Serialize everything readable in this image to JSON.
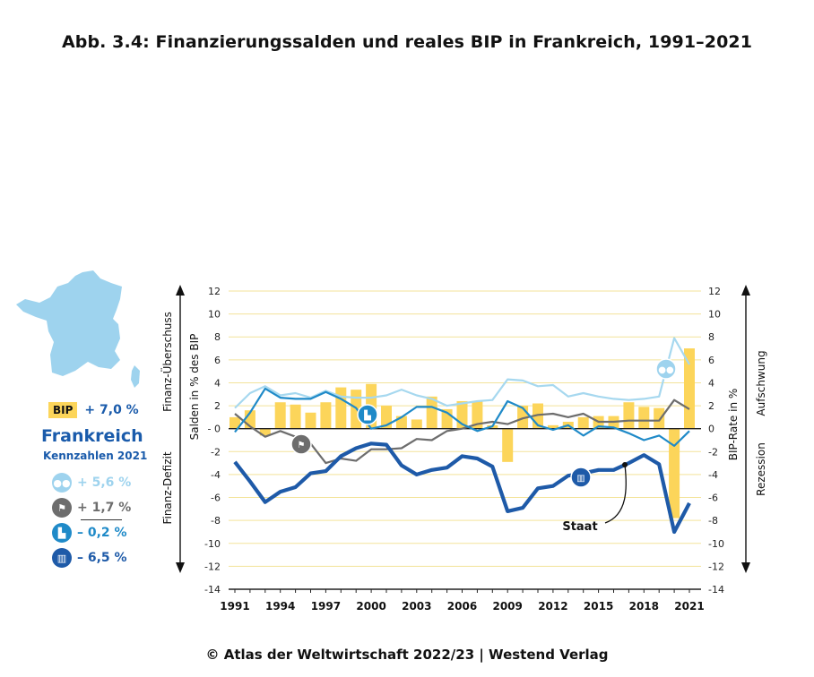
{
  "title": "Abb. 3.4: Finanzierungssalden und reales BIP in Frankreich, 1991–2021",
  "credit": "© Atlas der Weltwirtschaft 2022/23 | Westend Verlag",
  "sidebar": {
    "bip_badge": "BIP",
    "bip_value": "+ 7,0 %",
    "country": "Frankreich",
    "subtitle": "Kennzahlen 2021",
    "kpis": [
      {
        "icon": "households-icon",
        "value": "+ 5,6 %",
        "color": "#9ed3ee"
      },
      {
        "icon": "financial-sector-icon",
        "value": "+ 1,7 %",
        "color": "#6d6d6d"
      },
      {
        "icon": "companies-icon",
        "value": "– 0,2 %",
        "color": "#1f8ac8"
      },
      {
        "icon": "government-icon",
        "value": "– 6,5 %",
        "color": "#1e5aa8"
      }
    ],
    "map_icon": "france-map"
  },
  "chart_data": {
    "type": "bar+line",
    "x": [
      1991,
      1992,
      1993,
      1994,
      1995,
      1996,
      1997,
      1998,
      1999,
      2000,
      2001,
      2002,
      2003,
      2004,
      2005,
      2006,
      2007,
      2008,
      2009,
      2010,
      2011,
      2012,
      2013,
      2014,
      2015,
      2016,
      2017,
      2018,
      2019,
      2020,
      2021
    ],
    "x_ticks": [
      "1991",
      "1994",
      "1997",
      "2000",
      "2003",
      "2006",
      "2009",
      "2012",
      "2015",
      "2018",
      "2021"
    ],
    "ylim": [
      -14,
      12
    ],
    "y_ticks": [
      12,
      10,
      8,
      6,
      4,
      2,
      0,
      -2,
      -4,
      -6,
      -8,
      -10,
      -12,
      -14
    ],
    "y_tick_labels": [
      "12",
      "10",
      "8",
      "6",
      "4",
      "2",
      "- 0",
      "-2",
      "-4",
      "-6",
      "-8",
      "-10",
      "-12",
      "-14"
    ],
    "y_tick_labels_right": [
      "12",
      "10",
      "8",
      "6",
      "4",
      "2",
      "0",
      "-2",
      "-4",
      "-6",
      "-8",
      "-10",
      "-12",
      "-14"
    ],
    "ylabel_left": "Salden in % des BIP",
    "ylabel_right": "BIP-Rate in %",
    "left_upper": "Finanz-Überschuss",
    "left_lower": "Finanz-Defizit",
    "right_upper": "Aufschwung",
    "right_lower": "Rezession",
    "annotation": "Staat",
    "bars": {
      "name": "BIP",
      "color": "#fcd55a",
      "values": [
        1.0,
        1.6,
        -0.6,
        2.3,
        2.1,
        1.4,
        2.3,
        3.6,
        3.4,
        3.9,
        2.0,
        1.1,
        0.8,
        2.8,
        1.7,
        2.4,
        2.4,
        0.3,
        -2.9,
        2.0,
        2.2,
        0.3,
        0.6,
        1.0,
        1.1,
        1.1,
        2.3,
        1.9,
        1.8,
        -7.8,
        7.0
      ]
    },
    "series": [
      {
        "name": "Haushalte",
        "color": "#a6d8ef",
        "width": 2.2,
        "values": [
          1.8,
          3.1,
          3.7,
          2.9,
          3.1,
          2.7,
          3.3,
          2.8,
          2.7,
          2.7,
          2.9,
          3.4,
          2.9,
          2.6,
          2.0,
          2.2,
          2.4,
          2.5,
          4.3,
          4.2,
          3.7,
          3.8,
          2.8,
          3.1,
          2.8,
          2.6,
          2.5,
          2.6,
          2.8,
          7.9,
          5.6
        ]
      },
      {
        "name": "Finanzsektor",
        "color": "#6d6d6d",
        "width": 2.2,
        "values": [
          1.3,
          0.2,
          -0.7,
          -0.2,
          -0.7,
          -1.3,
          -3.0,
          -2.6,
          -2.8,
          -1.8,
          -1.8,
          -1.7,
          -0.9,
          -1.0,
          -0.2,
          0.0,
          0.4,
          0.6,
          0.4,
          0.9,
          1.2,
          1.3,
          1.0,
          1.3,
          0.6,
          0.6,
          0.7,
          0.7,
          0.7,
          2.5,
          1.7
        ]
      },
      {
        "name": "Unternehmen",
        "color": "#1f8ac8",
        "width": 2.2,
        "values": [
          -0.3,
          1.4,
          3.5,
          2.7,
          2.6,
          2.6,
          3.2,
          2.6,
          1.8,
          0.0,
          0.3,
          1.0,
          1.9,
          1.9,
          1.4,
          0.4,
          -0.2,
          0.2,
          2.4,
          1.8,
          0.3,
          -0.1,
          0.3,
          -0.6,
          0.2,
          0.1,
          -0.4,
          -1.0,
          -0.6,
          -1.5,
          -0.2
        ]
      },
      {
        "name": "Staat",
        "color": "#1e5aa8",
        "width": 4.2,
        "values": [
          -2.9,
          -4.6,
          -6.4,
          -5.5,
          -5.1,
          -3.9,
          -3.7,
          -2.4,
          -1.7,
          -1.3,
          -1.4,
          -3.2,
          -4.0,
          -3.6,
          -3.4,
          -2.4,
          -2.6,
          -3.3,
          -7.2,
          -6.9,
          -5.2,
          -5.0,
          -4.1,
          -3.9,
          -3.6,
          -3.6,
          -3.0,
          -2.3,
          -3.1,
          -9.0,
          -6.5
        ]
      }
    ],
    "grid": true,
    "legend": "left-panel"
  }
}
